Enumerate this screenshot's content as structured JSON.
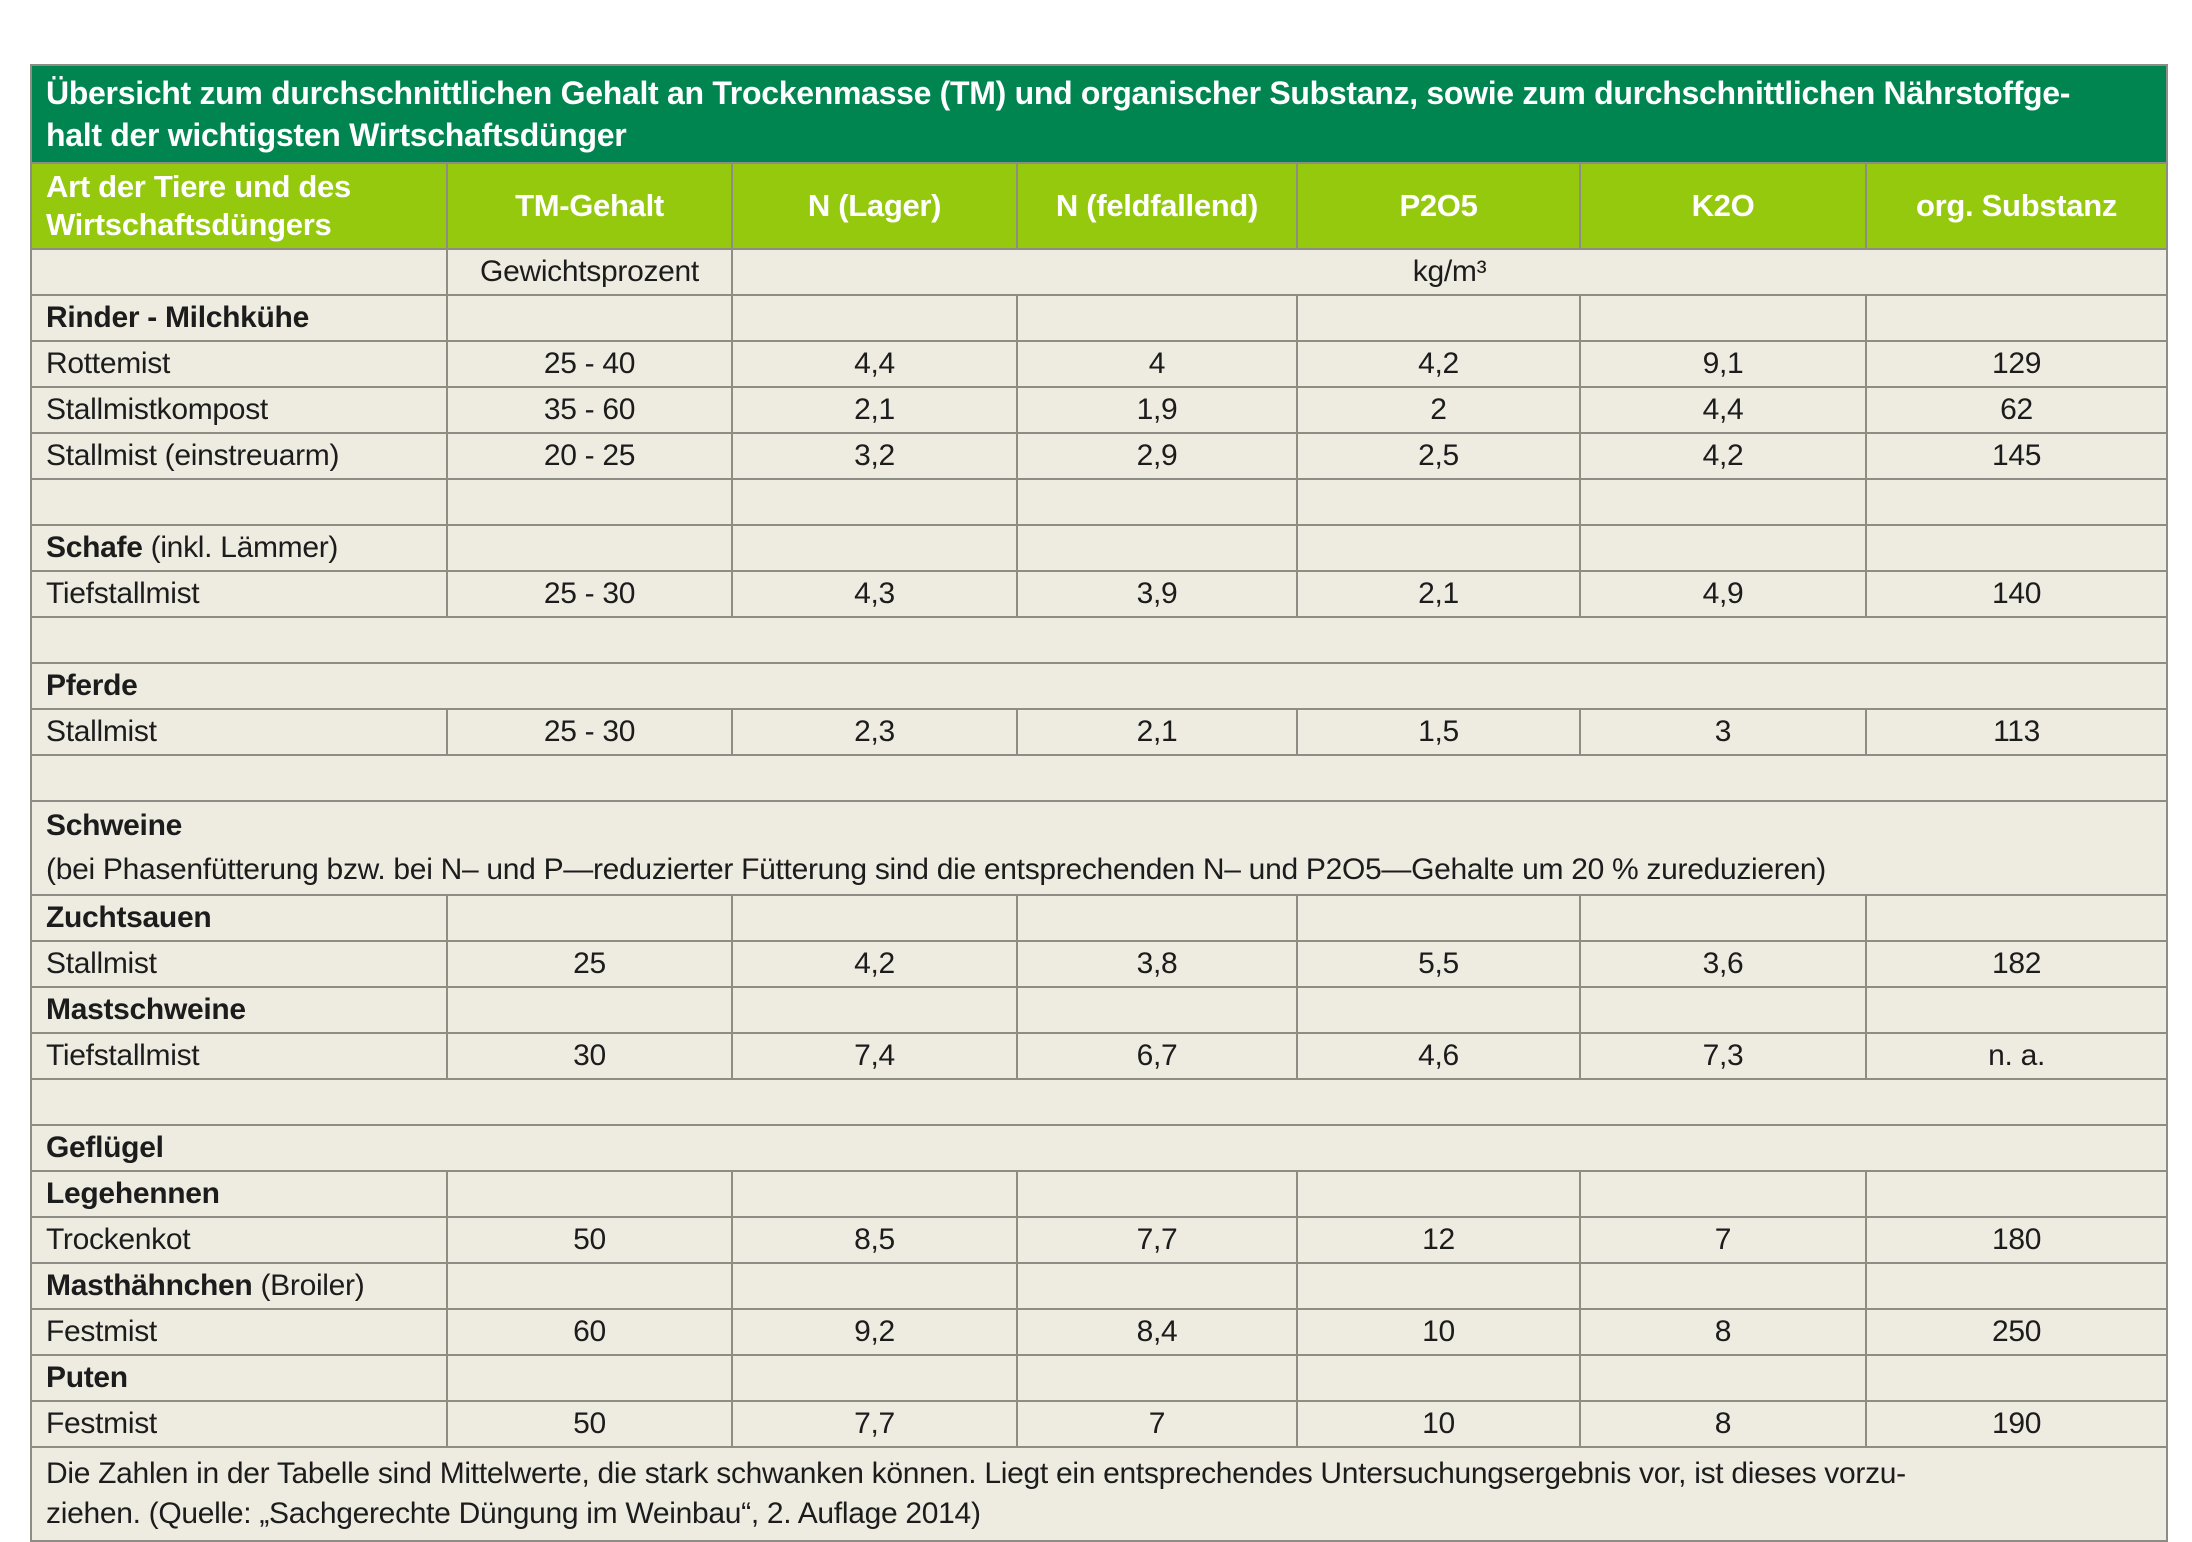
{
  "title": {
    "line1": "Übersicht zum durchschnittlichen Gehalt an Trockenmasse (TM) und organischer Substanz, sowie zum durchschnittlichen Nährstoffge-",
    "line2": "halt der wichtigsten Wirtschaftsdünger"
  },
  "columns": [
    "Art der Tiere und des Wirtschaftsdüngers",
    "TM-Gehalt",
    "N (Lager)",
    "N (feldfallend)",
    "P2O5",
    "K2O",
    "org. Substanz"
  ],
  "units": {
    "weight": "Gewichtsprozent",
    "volume": "kg/m³"
  },
  "rows": [
    {
      "type": "group",
      "label_bold": "Rinder - Milchkühe",
      "label_rest": ""
    },
    {
      "type": "data",
      "label": "Rottemist",
      "values": [
        "25 - 40",
        "4,4",
        "4",
        "4,2",
        "9,1",
        "129"
      ]
    },
    {
      "type": "data",
      "label": "Stallmistkompost",
      "values": [
        "35 - 60",
        "2,1",
        "1,9",
        "2",
        "4,4",
        "62"
      ]
    },
    {
      "type": "data",
      "label": "Stallmist (einstreuarm)",
      "values": [
        "20 - 25",
        "3,2",
        "2,9",
        "2,5",
        "4,2",
        "145"
      ]
    },
    {
      "type": "empty_cells"
    },
    {
      "type": "group",
      "label_bold": "Schafe",
      "label_rest": " (inkl. Lämmer)"
    },
    {
      "type": "data",
      "label": "Tiefstallmist",
      "values": [
        "25 - 30",
        "4,3",
        "3,9",
        "2,1",
        "4,9",
        "140"
      ]
    },
    {
      "type": "empty_merged"
    },
    {
      "type": "section",
      "label_bold": "Pferde",
      "label_rest": ""
    },
    {
      "type": "data",
      "label": "Stallmist",
      "values": [
        "25 - 30",
        "2,3",
        "2,1",
        "1,5",
        "3",
        "113"
      ]
    },
    {
      "type": "empty_merged"
    },
    {
      "type": "section_note",
      "label_bold": "Schweine",
      "note": "(bei Phasenfütterung bzw. bei N– und P—reduzierter Fütterung sind die entsprechenden N– und P2O5—Gehalte um 20 % zureduzieren)"
    },
    {
      "type": "group",
      "label_bold": "Zuchtsauen",
      "label_rest": ""
    },
    {
      "type": "data",
      "label": "Stallmist",
      "values": [
        "25",
        "4,2",
        "3,8",
        "5,5",
        "3,6",
        "182"
      ]
    },
    {
      "type": "group",
      "label_bold": "Mastschweine",
      "label_rest": ""
    },
    {
      "type": "data",
      "label": "Tiefstallmist",
      "values": [
        "30",
        "7,4",
        "6,7",
        "4,6",
        "7,3",
        "n. a."
      ]
    },
    {
      "type": "empty_merged"
    },
    {
      "type": "section",
      "label_bold": "Geflügel",
      "label_rest": ""
    },
    {
      "type": "group",
      "label_bold": "Legehennen",
      "label_rest": ""
    },
    {
      "type": "data",
      "label": "Trockenkot",
      "values": [
        "50",
        "8,5",
        "7,7",
        "12",
        "7",
        "180"
      ]
    },
    {
      "type": "group",
      "label_bold": "Masthähnchen",
      "label_rest": " (Broiler)"
    },
    {
      "type": "data",
      "label": "Festmist",
      "values": [
        "60",
        "9,2",
        "8,4",
        "10",
        "8",
        "250"
      ]
    },
    {
      "type": "group",
      "label_bold": "Puten",
      "label_rest": ""
    },
    {
      "type": "data",
      "label": "Festmist",
      "values": [
        "50",
        "7,7",
        "7",
        "10",
        "8",
        "190"
      ]
    }
  ],
  "footer": {
    "line1": "Die Zahlen in der Tabelle sind Mittelwerte, die stark schwanken können. Liegt ein entsprechendes Untersuchungsergebnis vor, ist dieses vorzu-",
    "line2": "ziehen. (Quelle: „Sachgerechte Düngung im Weinbau“, 2. Auflage 2014)"
  },
  "colors": {
    "title_bg": "#008551",
    "header_bg": "#94c90e",
    "row_bg": "#eeebe1",
    "border": "#8d8d85",
    "text": "#1c1c1c",
    "header_text": "#ffffff"
  }
}
